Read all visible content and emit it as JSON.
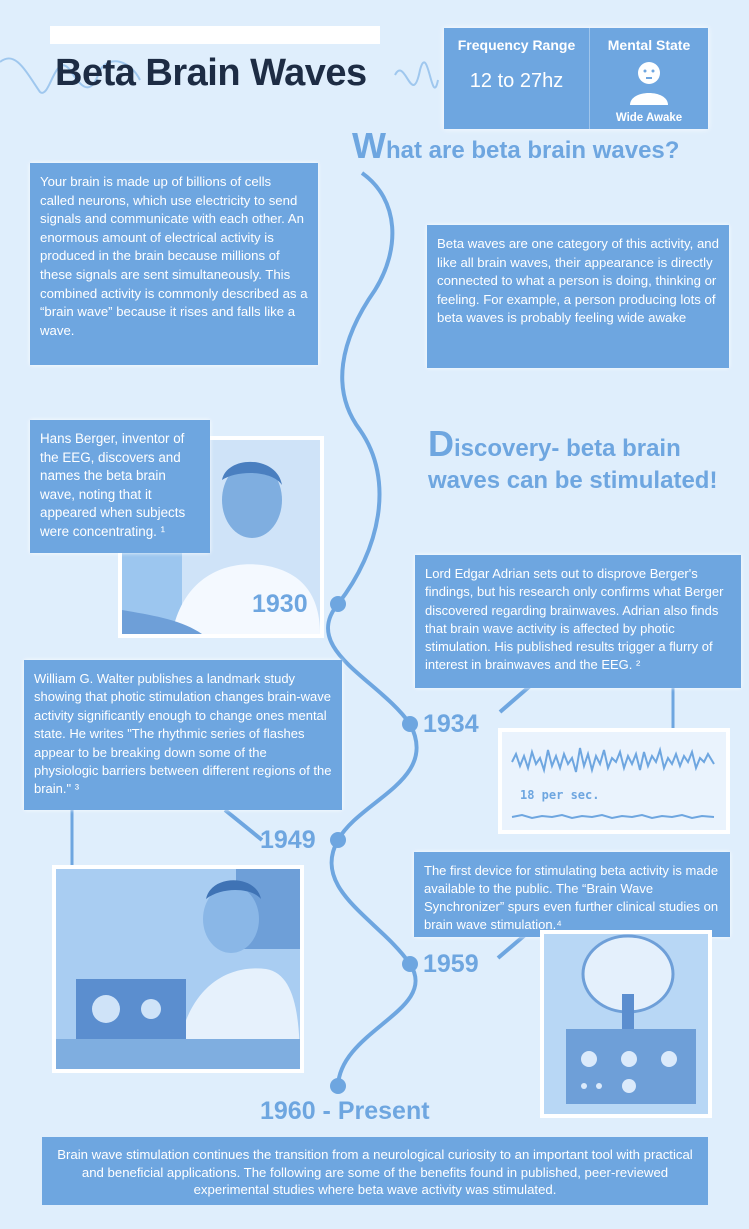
{
  "header": {
    "title": "Beta Brain Waves",
    "frequency_label": "Frequency Range",
    "frequency_value": "12 to 27hz",
    "state_label": "Mental State",
    "state_value": "Wide Awake"
  },
  "sections": {
    "what_are_initial": "W",
    "what_are_rest": "hat are beta brain waves?",
    "discovery_initial": "D",
    "discovery_line1": "iscovery- beta brain",
    "discovery_line2": "waves can be stimulated!"
  },
  "intro": {
    "paragraph1": "Your brain is made up of billions of cells called neurons, which use electricity to send signals and communicate with each other. An enormous amount of electrical activity is produced in the brain because millions of these signals are sent simultaneously. This combined activity is commonly described as a “brain wave” because it rises and falls like a wave.",
    "paragraph2": "Beta waves are one category of this activity, and like all brain waves, their appearance is directly connected to what a person is doing, thinking or feeling. For example, a person producing lots of beta waves is probably feeling wide awake"
  },
  "timeline": [
    {
      "year": "1930",
      "text": "Hans Berger, inventor of the EEG, discovers and names the beta brain wave, noting that it appeared when subjects were concentrating. ¹"
    },
    {
      "year": "1934",
      "text": "Lord Edgar Adrian sets out to disprove Berger's findings, but his research only confirms what Berger discovered regarding brainwaves. Adrian also finds that brain wave activity is affected by photic stimulation. His published results trigger a flurry of interest in brainwaves and the EEG. ²"
    },
    {
      "year": "1949",
      "text": "William G. Walter publishes a landmark study showing that photic stimulation changes brain-wave activity significantly enough to change ones mental state. He writes \"The rhythmic series of flashes appear to be breaking down some of the physiologic barriers between different regions of the brain.\" ³"
    },
    {
      "year": "1959",
      "text": "The first device for stimulating beta activity is made available to the public. The “Brain Wave Synchronizer” spurs even further clinical studies on brain wave stimulation.⁴"
    },
    {
      "year": "1960 - Present",
      "text": "Brain wave stimulation continues the transition from a neurological curiosity to an important tool with practical and beneficial applications. The following are some of the benefits found in published, peer-reviewed experimental studies where beta wave activity was stimulated."
    }
  ],
  "eeg_caption": "18 per sec.",
  "colors": {
    "accent": "#6ea6e0",
    "background": "#dfeefc",
    "title": "#1d2c44"
  }
}
